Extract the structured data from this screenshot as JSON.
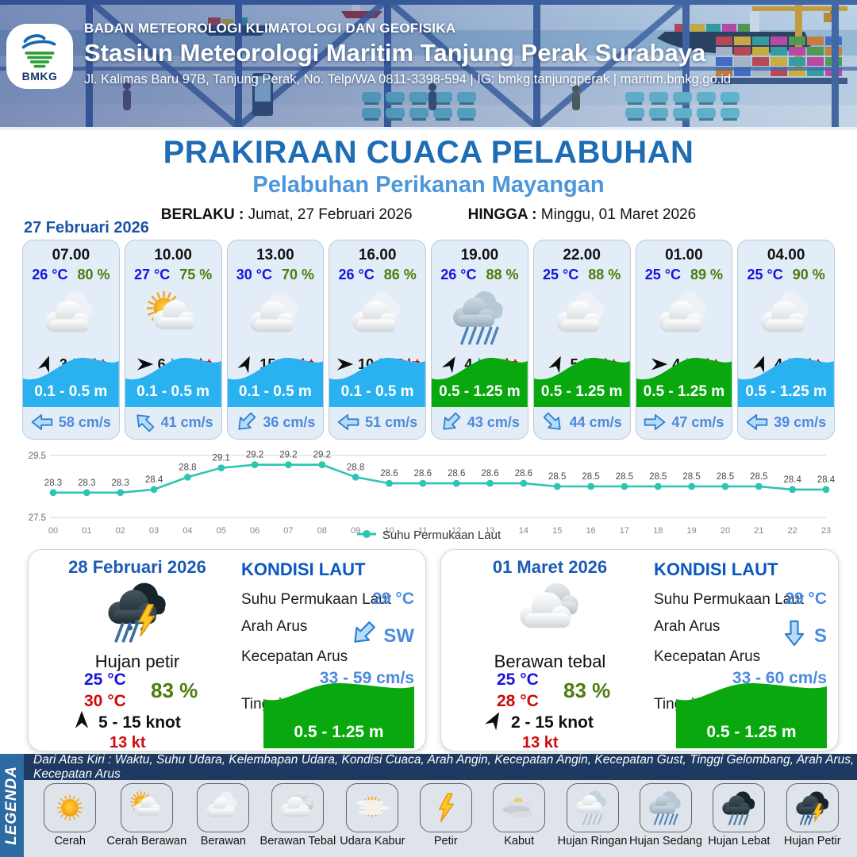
{
  "header": {
    "logo_text": "BMKG",
    "agency": "BADAN METEOROLOGI KLIMATOLOGI DAN GEOFISIKA",
    "station": "Stasiun Meteorologi Maritim Tanjung Perak Surabaya",
    "address": "Jl. Kalimas Baru 97B, Tanjung Perak, No. Telp/WA 0811-3398-594 | IG: bmkg.tanjungperak | maritim.bmkg.go.id"
  },
  "title": {
    "main": "PRAKIRAAN CUACA PELABUHAN",
    "sub": "Pelabuhan Perikanan Mayangan"
  },
  "validity": {
    "berlaku_label": "BERLAKU :",
    "berlaku": "Jumat, 27 Februari 2026",
    "hingga_label": "HINGGA :",
    "hingga": "Minggu, 01 Maret 2026"
  },
  "forecast_date": "27 Februari 2026",
  "colors": {
    "wave_blue": "#29b2ef",
    "wave_green": "#08a80e",
    "chart_line": "#2cc5b2",
    "temp_blue": "#1414dc",
    "humidity_green": "#4c7c0c",
    "gust_red": "#cf0a0a"
  },
  "hourly": [
    {
      "time": "07.00",
      "temp": "26 °C",
      "humidity": "80 %",
      "icon": "berawan",
      "wind_speed": "3",
      "wind_deg": -70,
      "gust": "8 kt",
      "wave": "0.1 - 0.5 m",
      "wave_color": "blue",
      "current": "58 cm/s",
      "current_deg": 180
    },
    {
      "time": "10.00",
      "temp": "27 °C",
      "humidity": "75 %",
      "icon": "cerah-berawan",
      "wind_speed": "6",
      "wind_deg": 0,
      "gust": "10 kt",
      "wave": "0.1 - 0.5 m",
      "wave_color": "blue",
      "current": "41 cm/s",
      "current_deg": -135
    },
    {
      "time": "13.00",
      "temp": "30 °C",
      "humidity": "70 %",
      "icon": "berawan",
      "wind_speed": "15",
      "wind_deg": -65,
      "gust": "7 kt",
      "wave": "0.1 - 0.5 m",
      "wave_color": "blue",
      "current": "36 cm/s",
      "current_deg": 135
    },
    {
      "time": "16.00",
      "temp": "26 °C",
      "humidity": "86 %",
      "icon": "berawan",
      "wind_speed": "10",
      "wind_deg": 0,
      "gust": "17 kt",
      "wave": "0.1 - 0.5 m",
      "wave_color": "blue",
      "current": "51 cm/s",
      "current_deg": 180
    },
    {
      "time": "19.00",
      "temp": "26 °C",
      "humidity": "88 %",
      "icon": "hujan-sedang",
      "wind_speed": "4",
      "wind_deg": -60,
      "gust": "11 kt",
      "wave": "0.5 - 1.25 m",
      "wave_color": "green",
      "current": "43 cm/s",
      "current_deg": 135
    },
    {
      "time": "22.00",
      "temp": "25 °C",
      "humidity": "88 %",
      "icon": "berawan",
      "wind_speed": "5",
      "wind_deg": -65,
      "gust": "8 kt",
      "wave": "0.5 - 1.25 m",
      "wave_color": "green",
      "current": "44 cm/s",
      "current_deg": 45
    },
    {
      "time": "01.00",
      "temp": "25 °C",
      "humidity": "89 %",
      "icon": "berawan",
      "wind_speed": "4",
      "wind_deg": 0,
      "gust": "7 kt",
      "wave": "0.5 - 1.25 m",
      "wave_color": "green",
      "current": "47 cm/s",
      "current_deg": 0
    },
    {
      "time": "04.00",
      "temp": "25 °C",
      "humidity": "90 %",
      "icon": "berawan",
      "wind_speed": "4",
      "wind_deg": -70,
      "gust": "8 kt",
      "wave": "0.5 - 1.25 m",
      "wave_color": "blue",
      "current": "39 cm/s",
      "current_deg": 180
    }
  ],
  "chart_data": {
    "type": "line",
    "x": [
      "00",
      "01",
      "02",
      "03",
      "04",
      "05",
      "06",
      "07",
      "08",
      "09",
      "10",
      "11",
      "12",
      "13",
      "14",
      "15",
      "16",
      "17",
      "18",
      "19",
      "20",
      "21",
      "22",
      "23"
    ],
    "series": [
      {
        "name": "Suhu Permukaan Laut",
        "values": [
          28.3,
          28.3,
          28.3,
          28.4,
          28.8,
          29.1,
          29.2,
          29.2,
          29.2,
          28.8,
          28.6,
          28.6,
          28.6,
          28.6,
          28.6,
          28.5,
          28.5,
          28.5,
          28.5,
          28.5,
          28.5,
          28.5,
          28.4,
          28.4
        ]
      }
    ],
    "ylim": [
      27.5,
      29.5
    ],
    "yticks": [
      29.5,
      27.5
    ],
    "legend_position": "bottom",
    "grid": true
  },
  "sea_labels": {
    "title": "KONDISI LAUT",
    "sst": "Suhu Permukaan Laut",
    "arah": "Arah Arus",
    "kecepatan": "Kecepatan Arus",
    "tinggi": "Tinggi Gelombang"
  },
  "daily": [
    {
      "date": "28 Februari 2026",
      "icon": "hujan-petir",
      "condition": "Hujan petir",
      "temp_min": "25 °C",
      "temp_max": "30 °C",
      "humidity": "83 %",
      "wind_deg": -90,
      "wind_range": "5 - 15 knot",
      "gust": "13 kt",
      "sea": {
        "sst": "29 °C",
        "dir": "SW",
        "dir_deg": 135,
        "speed": "33 - 59 cm/s",
        "wave": "0.5 - 1.25 m"
      }
    },
    {
      "date": "01 Maret 2026",
      "icon": "berawan-tebal",
      "condition": "Berawan tebal",
      "temp_min": "25 °C",
      "temp_max": "28 °C",
      "humidity": "83 %",
      "wind_deg": -60,
      "wind_range": "2 - 15 knot",
      "gust": "13 kt",
      "sea": {
        "sst": "29 °C",
        "dir": "S",
        "dir_deg": 90,
        "speed": "33 - 60 cm/s",
        "wave": "0.5 - 1.25 m"
      }
    }
  ],
  "legend": {
    "bar_label": "LEGENDA",
    "description": "Dari Atas Kiri : Waktu, Suhu Udara, Kelembapan Udara, Kondisi Cuaca, Arah Angin, Kecepatan Angin, Kecepatan Gust, Tinggi Gelombang, Arah Arus, Kecepatan Arus",
    "items": [
      {
        "label": "Cerah",
        "icon": "cerah"
      },
      {
        "label": "Cerah Berawan",
        "icon": "cerah-berawan"
      },
      {
        "label": "Berawan",
        "icon": "berawan"
      },
      {
        "label": "Berawan Tebal",
        "icon": "berawan-tebal"
      },
      {
        "label": "Udara Kabur",
        "icon": "udara-kabur"
      },
      {
        "label": "Petir",
        "icon": "petir"
      },
      {
        "label": "Kabut",
        "icon": "kabut"
      },
      {
        "label": "Hujan Ringan",
        "icon": "hujan-ringan"
      },
      {
        "label": "Hujan Sedang",
        "icon": "hujan-sedang"
      },
      {
        "label": "Hujan Lebat",
        "icon": "hujan-lebat"
      },
      {
        "label": "Hujan Petir",
        "icon": "hujan-petir"
      }
    ]
  }
}
